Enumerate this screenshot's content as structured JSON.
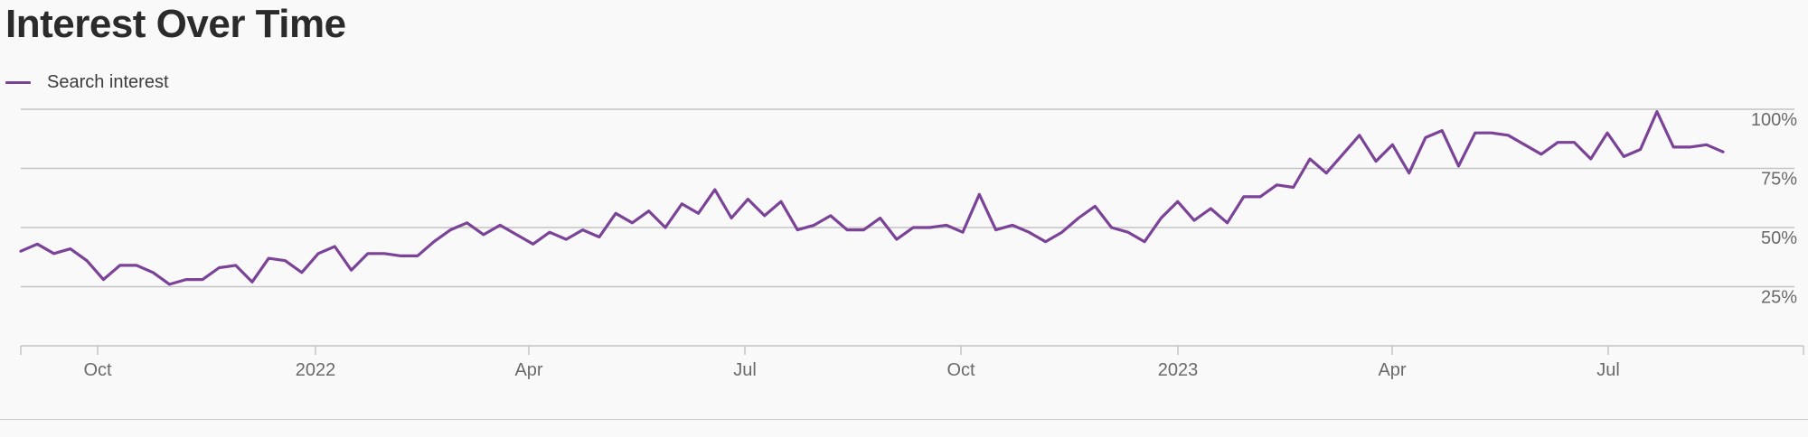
{
  "header": {
    "title": "Interest Over Time"
  },
  "colors": {
    "line": "#7b4397",
    "grid": "#c4c4c4",
    "axis": "#c4c4c4",
    "text": "#6a6a6a"
  },
  "chart_data": {
    "type": "line",
    "series": [
      {
        "name": "Search interest",
        "values": [
          40,
          43,
          39,
          41,
          36,
          28,
          34,
          34,
          31,
          26,
          28,
          28,
          33,
          34,
          27,
          37,
          36,
          31,
          39,
          42,
          32,
          39,
          39,
          38,
          38,
          44,
          49,
          52,
          47,
          51,
          47,
          43,
          48,
          45,
          49,
          46,
          56,
          52,
          57,
          50,
          60,
          56,
          66,
          54,
          62,
          55,
          61,
          49,
          51,
          55,
          49,
          49,
          54,
          45,
          50,
          50,
          51,
          48,
          64,
          49,
          51,
          48,
          44,
          48,
          54,
          59,
          50,
          48,
          44,
          54,
          61,
          53,
          58,
          52,
          63,
          63,
          68,
          67,
          79,
          73,
          81,
          89,
          78,
          85,
          73,
          88,
          91,
          76,
          90,
          90,
          89,
          85,
          81,
          86,
          86,
          79,
          90,
          80,
          83,
          99,
          84,
          84,
          85,
          82
        ]
      }
    ],
    "x_tick_labels": [
      "Oct",
      "2022",
      "Apr",
      "Jul",
      "Oct",
      "2023",
      "Apr",
      "Jul"
    ],
    "y_tick_labels": [
      "100%",
      "75%",
      "50%",
      "25%"
    ],
    "y_ticks": [
      100,
      75,
      50,
      25
    ],
    "ylim": [
      0,
      100
    ],
    "grid": true,
    "legend_position": "top-left"
  }
}
